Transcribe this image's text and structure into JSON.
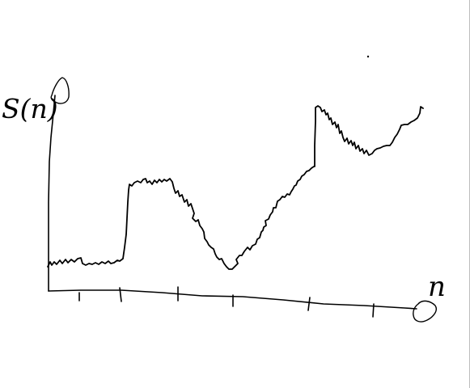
{
  "diagram": {
    "y_axis_label": "S(n)",
    "x_axis_label": "n",
    "stroke_color": "#000000",
    "background_color": "#ffffff"
  }
}
